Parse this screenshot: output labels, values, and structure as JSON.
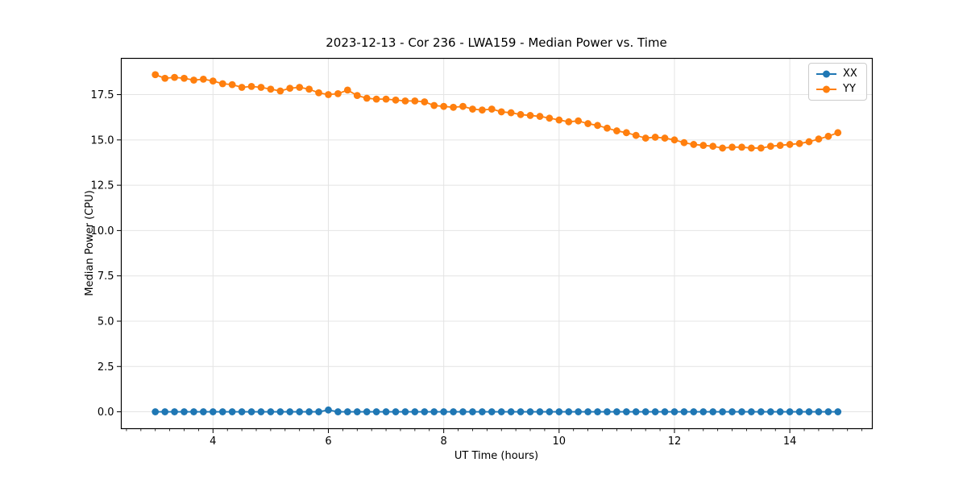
{
  "figure": {
    "title": "2023-12-13 - Cor 236 - LWA159 - Median Power vs. Time",
    "xlabel": "UT Time (hours)",
    "ylabel": "Median Power (CPU)"
  },
  "legend": {
    "position": "upper right",
    "items": [
      {
        "label": "XX",
        "color": "#1f77b4"
      },
      {
        "label": "YY",
        "color": "#ff7f0e"
      }
    ]
  },
  "colors": {
    "series_xx": "#1f77b4",
    "series_yy": "#ff7f0e",
    "grid": "#e4e4e4",
    "spine": "#000000",
    "background": "#ffffff"
  },
  "chart_data": {
    "type": "line",
    "title": "2023-12-13 - Cor 236 - LWA159 - Median Power vs. Time",
    "xlabel": "UT Time (hours)",
    "ylabel": "Median Power (CPU)",
    "grid": true,
    "legend_position": "upper right",
    "xlim": [
      2.41,
      15.43
    ],
    "ylim": [
      -0.93,
      19.5
    ],
    "xticks": [
      4,
      6,
      8,
      10,
      12,
      14
    ],
    "xtick_labels": [
      "4",
      "6",
      "8",
      "10",
      "12",
      "14"
    ],
    "minor_xtick_step": 0.25,
    "yticks": [
      0.0,
      2.5,
      5.0,
      7.5,
      10.0,
      12.5,
      15.0,
      17.5
    ],
    "ytick_labels": [
      "0.0",
      "2.5",
      "5.0",
      "7.5",
      "10.0",
      "12.5",
      "15.0",
      "17.5"
    ],
    "marker": "circle",
    "x": [
      3.0,
      3.167,
      3.333,
      3.5,
      3.667,
      3.833,
      4.0,
      4.167,
      4.333,
      4.5,
      4.667,
      4.833,
      5.0,
      5.167,
      5.333,
      5.5,
      5.667,
      5.833,
      6.0,
      6.167,
      6.333,
      6.5,
      6.667,
      6.833,
      7.0,
      7.167,
      7.333,
      7.5,
      7.667,
      7.833,
      8.0,
      8.167,
      8.333,
      8.5,
      8.667,
      8.833,
      9.0,
      9.167,
      9.333,
      9.5,
      9.667,
      9.833,
      10.0,
      10.167,
      10.333,
      10.5,
      10.667,
      10.833,
      11.0,
      11.167,
      11.333,
      11.5,
      11.667,
      11.833,
      12.0,
      12.167,
      12.333,
      12.5,
      12.667,
      12.833,
      13.0,
      13.167,
      13.333,
      13.5,
      13.667,
      13.833,
      14.0,
      14.167,
      14.333,
      14.5,
      14.667,
      14.833
    ],
    "series": [
      {
        "name": "XX",
        "color": "#1f77b4",
        "values": [
          0.0,
          0.0,
          0.0,
          0.0,
          0.0,
          0.0,
          0.0,
          0.0,
          0.0,
          0.0,
          0.0,
          0.0,
          0.0,
          0.0,
          0.0,
          0.0,
          0.0,
          0.0,
          0.1,
          0.0,
          0.0,
          0.0,
          0.0,
          0.0,
          0.0,
          0.0,
          0.0,
          0.0,
          0.0,
          0.0,
          0.0,
          0.0,
          0.0,
          0.0,
          0.0,
          0.0,
          0.0,
          0.0,
          0.0,
          0.0,
          0.0,
          0.0,
          0.0,
          0.0,
          0.0,
          0.0,
          0.0,
          0.0,
          0.0,
          0.0,
          0.0,
          0.0,
          0.0,
          0.0,
          0.0,
          0.0,
          0.0,
          0.0,
          0.0,
          0.0,
          0.0,
          0.0,
          0.0,
          0.0,
          0.0,
          0.0,
          0.0,
          0.0,
          0.0,
          0.0,
          0.0,
          0.0
        ]
      },
      {
        "name": "YY",
        "color": "#ff7f0e",
        "values": [
          18.6,
          18.4,
          18.45,
          18.4,
          18.3,
          18.35,
          18.25,
          18.1,
          18.05,
          17.9,
          17.95,
          17.9,
          17.8,
          17.7,
          17.85,
          17.9,
          17.8,
          17.6,
          17.5,
          17.55,
          17.75,
          17.45,
          17.3,
          17.25,
          17.25,
          17.2,
          17.15,
          17.15,
          17.1,
          16.9,
          16.85,
          16.8,
          16.85,
          16.7,
          16.65,
          16.7,
          16.55,
          16.5,
          16.4,
          16.35,
          16.3,
          16.2,
          16.1,
          16.0,
          16.05,
          15.9,
          15.8,
          15.65,
          15.5,
          15.4,
          15.25,
          15.1,
          15.15,
          15.1,
          15.0,
          14.85,
          14.75,
          14.7,
          14.65,
          14.55,
          14.6,
          14.6,
          14.55,
          14.55,
          14.65,
          14.7,
          14.75,
          14.8,
          14.9,
          15.05,
          15.2,
          15.4
        ]
      }
    ]
  }
}
